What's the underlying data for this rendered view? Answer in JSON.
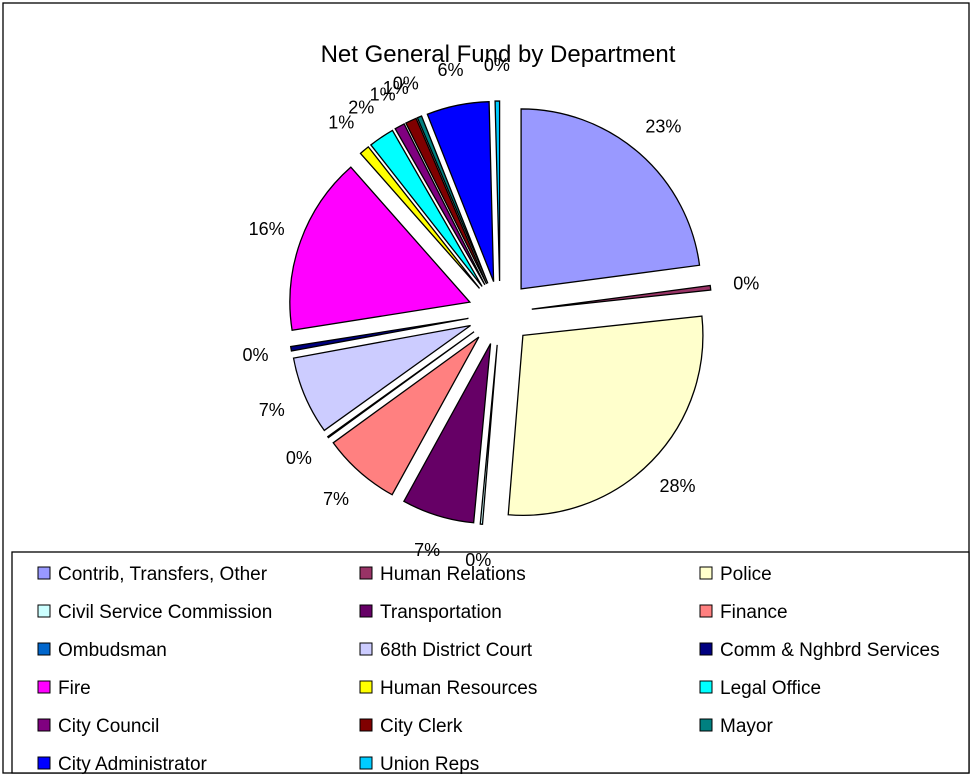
{
  "chart_data": {
    "type": "pie",
    "title": "Net General Fund by Department",
    "legend_position": "bottom",
    "slices": [
      {
        "name": "Contrib, Transfers, Other",
        "label": "23%",
        "value": 22.9,
        "color": "#9999FF"
      },
      {
        "name": "Human Relations",
        "label": "0%",
        "value": 0.4,
        "color": "#993366"
      },
      {
        "name": "Police",
        "label": "28%",
        "value": 28.0,
        "color": "#FFFFCC"
      },
      {
        "name": "Civil Service Commission",
        "label": "0%",
        "value": 0.2,
        "color": "#CCFFFF"
      },
      {
        "name": "Transportation",
        "label": "7%",
        "value": 6.5,
        "color": "#660066"
      },
      {
        "name": "Finance",
        "label": "7%",
        "value": 7.0,
        "color": "#FF8080"
      },
      {
        "name": "Ombudsman",
        "label": "0%",
        "value": 0.1,
        "color": "#0066CC"
      },
      {
        "name": "68th District Court",
        "label": "7%",
        "value": 7.0,
        "color": "#CCCCFF"
      },
      {
        "name": "Comm & Nghbrd Services",
        "label": "0%",
        "value": 0.4,
        "color": "#000080"
      },
      {
        "name": "Fire",
        "label": "16%",
        "value": 16.0,
        "color": "#FF00FF"
      },
      {
        "name": "Human Resources",
        "label": "1%",
        "value": 0.9,
        "color": "#FFFF00"
      },
      {
        "name": "Legal Office",
        "label": "2%",
        "value": 2.3,
        "color": "#00FFFF"
      },
      {
        "name": "City Council",
        "label": "1%",
        "value": 0.9,
        "color": "#800080"
      },
      {
        "name": "City Clerk",
        "label": "1%",
        "value": 1.0,
        "color": "#800000"
      },
      {
        "name": "Mayor",
        "label": "0%",
        "value": 0.4,
        "color": "#008080"
      },
      {
        "name": "City Administrator",
        "label": "6%",
        "value": 5.6,
        "color": "#0000FF"
      },
      {
        "name": "Union Reps",
        "label": "0%",
        "value": 0.4,
        "color": "#00CCFF"
      }
    ]
  }
}
